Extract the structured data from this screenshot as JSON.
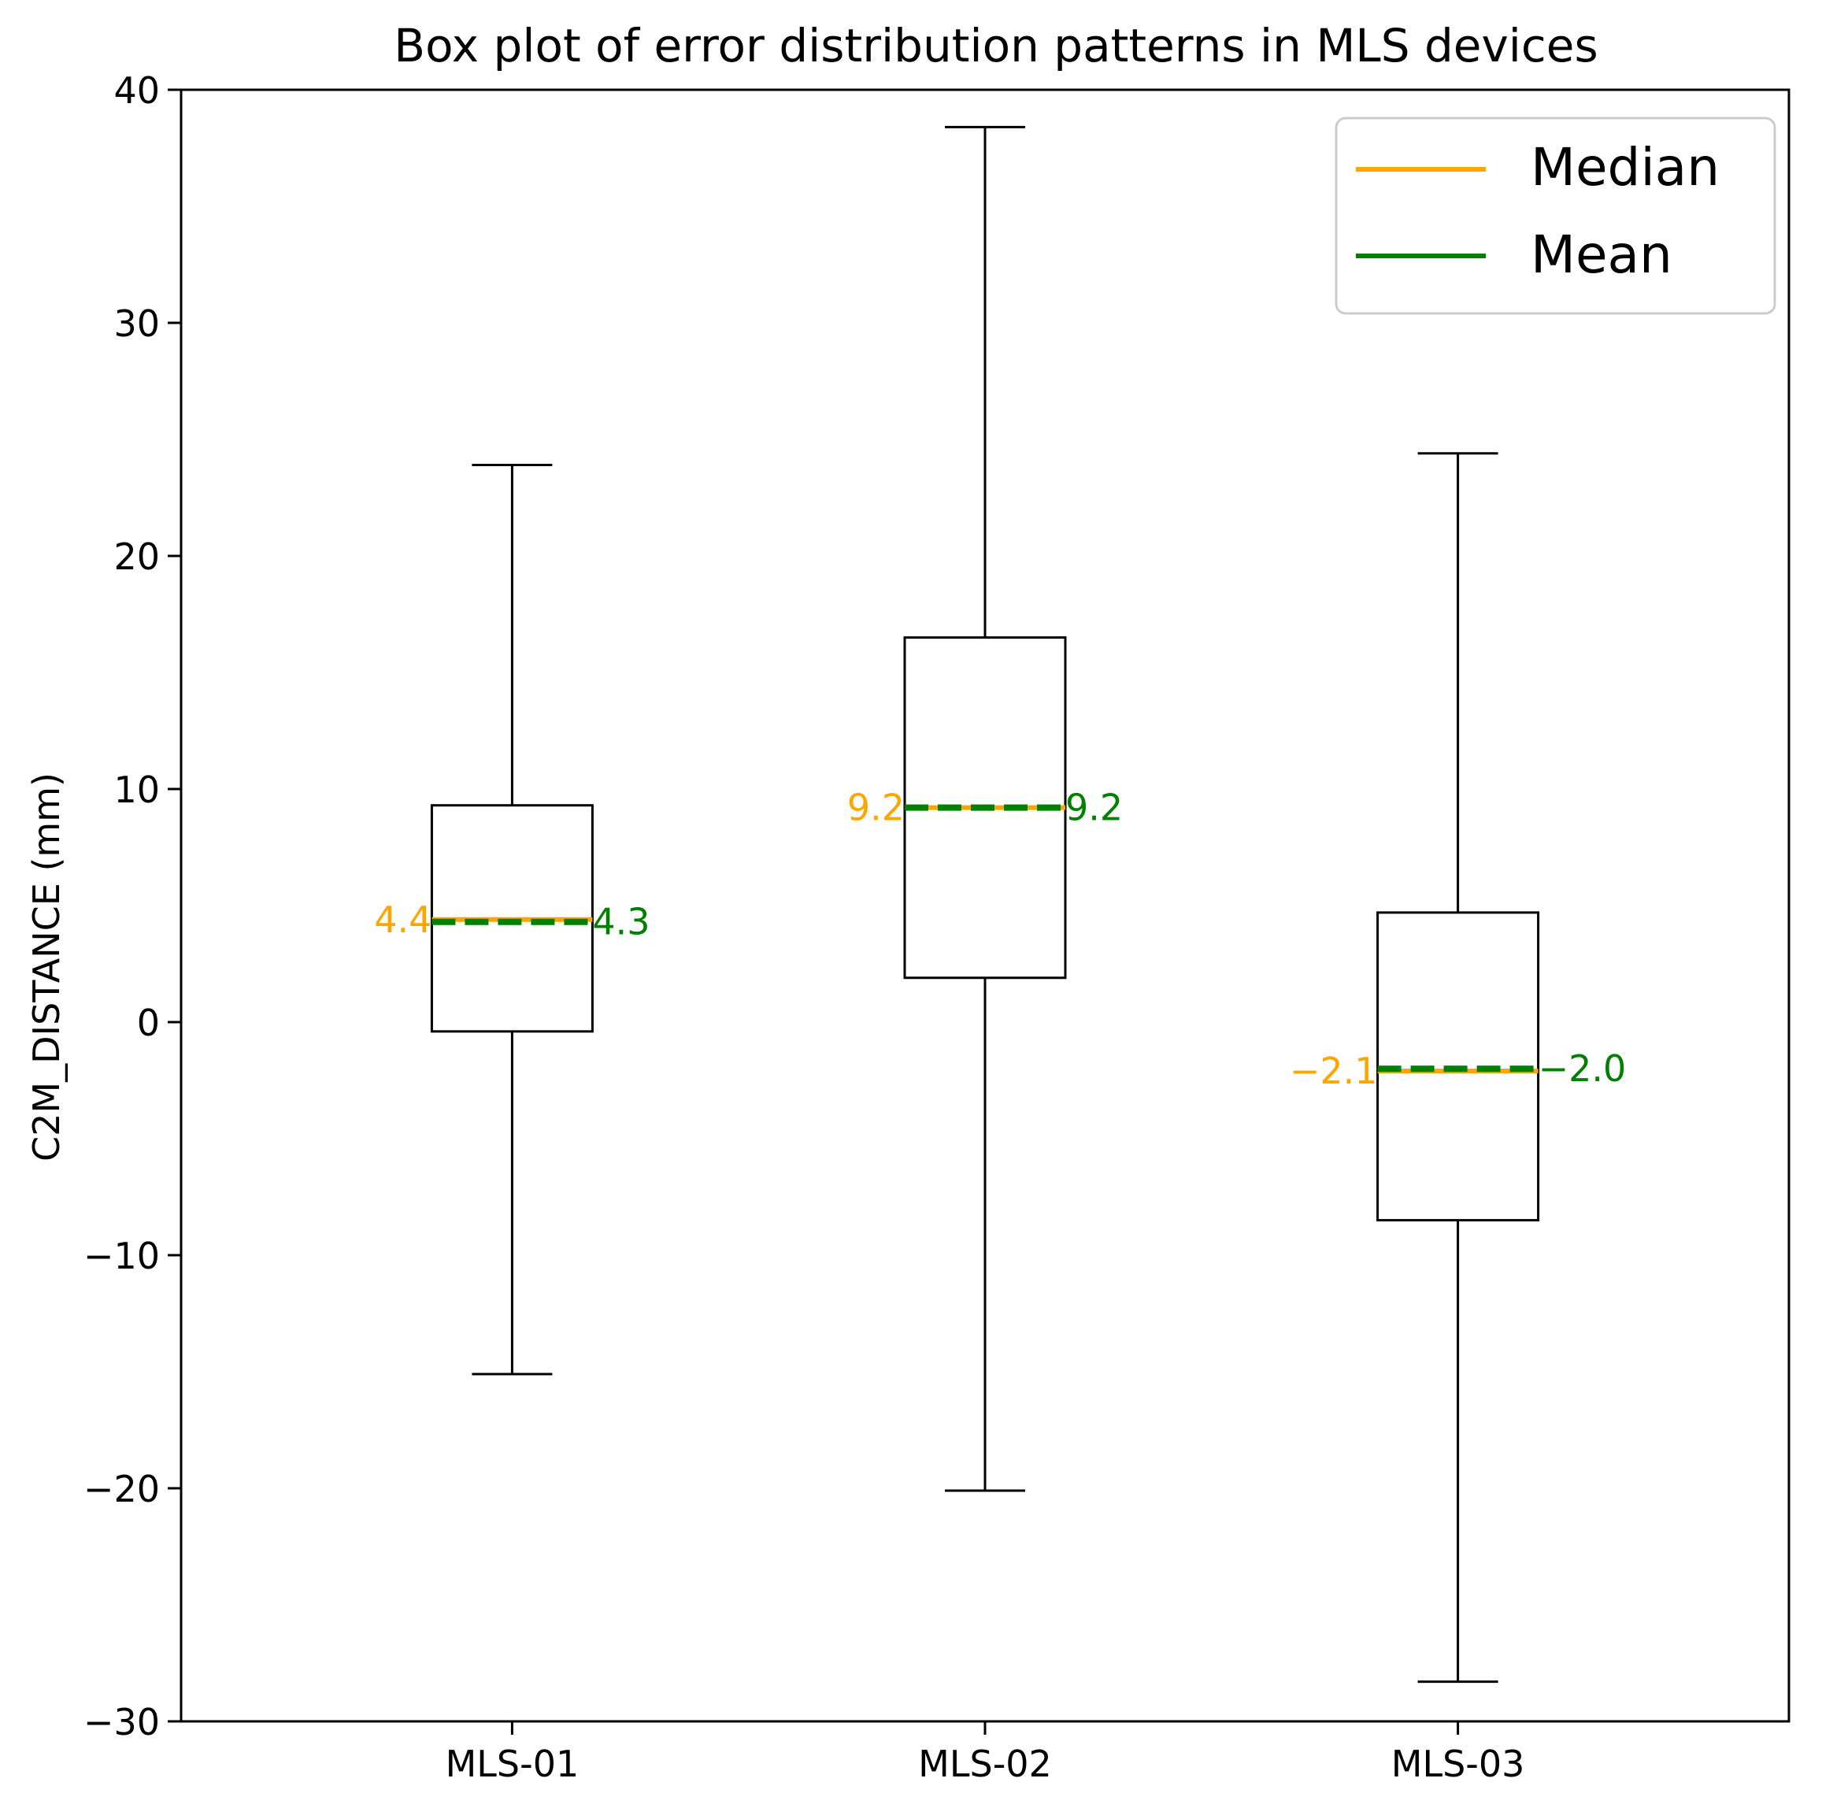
{
  "chart_data": {
    "type": "box",
    "title": "Box plot of error distribution patterns in MLS devices",
    "xlabel": "",
    "ylabel": "C2M_DISTANCE (mm)",
    "ylim": [
      -30,
      40
    ],
    "yticks": [
      -30,
      -20,
      -10,
      0,
      10,
      20,
      30,
      40
    ],
    "ytick_labels": [
      "−30",
      "−20",
      "−10",
      "0",
      "10",
      "20",
      "30",
      "40"
    ],
    "categories": [
      "MLS-01",
      "MLS-02",
      "MLS-03"
    ],
    "boxes": [
      {
        "name": "MLS-01",
        "whisker_low": -15.1,
        "q1": -0.4,
        "median": 4.4,
        "mean": 4.3,
        "q3": 9.3,
        "whisker_high": 23.9,
        "median_label": "4.4",
        "mean_label": "4.3"
      },
      {
        "name": "MLS-02",
        "whisker_low": -20.1,
        "q1": 1.9,
        "median": 9.2,
        "mean": 9.2,
        "q3": 16.5,
        "whisker_high": 38.4,
        "median_label": "9.2",
        "mean_label": "9.2"
      },
      {
        "name": "MLS-03",
        "whisker_low": -28.3,
        "q1": -8.5,
        "median": -2.1,
        "mean": -2.0,
        "q3": 4.7,
        "whisker_high": 24.4,
        "median_label": "−2.1",
        "mean_label": "−2.0"
      }
    ],
    "legend": {
      "position": "top-right",
      "entries": [
        {
          "label": "Median",
          "color": "#ffa500"
        },
        {
          "label": "Mean",
          "color": "#008000"
        }
      ]
    },
    "colors": {
      "median": "#ffa500",
      "mean": "#008000",
      "box": "#000000"
    }
  }
}
